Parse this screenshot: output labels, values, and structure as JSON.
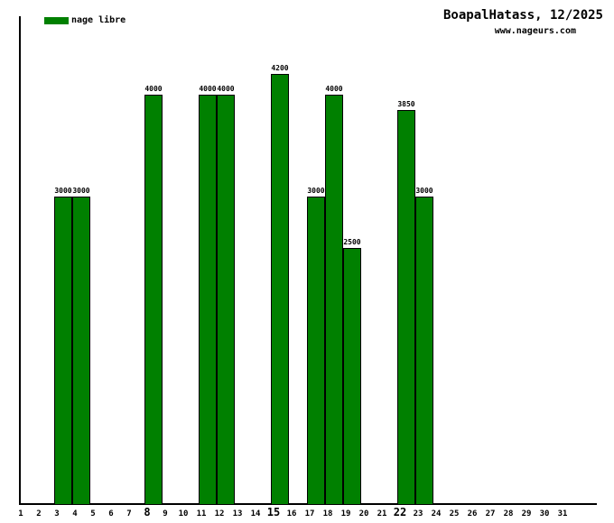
{
  "header": {
    "title": "BoapalHatass, 12/2025",
    "subtitle": "www.nageurs.com"
  },
  "legend": {
    "label": "nage libre",
    "color": "#008000"
  },
  "chart_data": {
    "type": "bar",
    "title": "BoapalHatass, 12/2025",
    "subtitle": "www.nageurs.com",
    "xlabel": "",
    "ylabel": "",
    "ylim": [
      0,
      4760
    ],
    "grid": false,
    "legend_position": "top-left",
    "value_labels": true,
    "bar_color": "#008000",
    "bar_border_color": "#000000",
    "x_ticks": [
      1,
      2,
      3,
      4,
      5,
      6,
      7,
      8,
      9,
      10,
      11,
      12,
      13,
      14,
      15,
      16,
      17,
      18,
      19,
      20,
      21,
      22,
      23,
      24,
      25,
      26,
      27,
      28,
      29,
      30,
      31
    ],
    "bold_x_ticks": [
      8,
      15,
      22
    ],
    "series": [
      {
        "name": "nage libre",
        "color": "#008000",
        "points": [
          {
            "day": 3,
            "value": 3000
          },
          {
            "day": 4,
            "value": 3000
          },
          {
            "day": 8,
            "value": 4000
          },
          {
            "day": 11,
            "value": 4000
          },
          {
            "day": 12,
            "value": 4000
          },
          {
            "day": 15,
            "value": 4200
          },
          {
            "day": 17,
            "value": 3000
          },
          {
            "day": 18,
            "value": 4000
          },
          {
            "day": 19,
            "value": 2500
          },
          {
            "day": 22,
            "value": 3850
          },
          {
            "day": 23,
            "value": 3000
          }
        ]
      }
    ]
  }
}
